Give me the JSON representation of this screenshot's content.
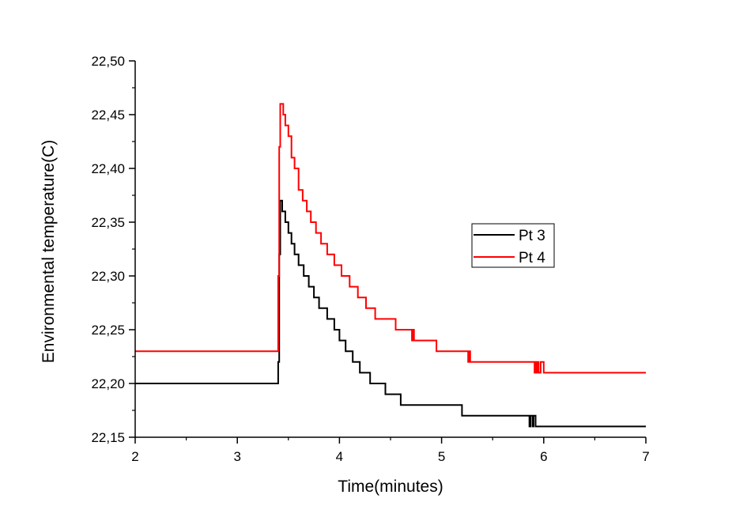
{
  "chart_data": {
    "type": "line",
    "title": "",
    "xlabel": "Time(minutes)",
    "ylabel": "Environmental temperature(C)",
    "xlim": [
      2,
      7
    ],
    "ylim": [
      22.15,
      22.5
    ],
    "x_ticks": [
      2,
      3,
      4,
      5,
      6,
      7
    ],
    "x_tick_labels": [
      "2",
      "3",
      "4",
      "5",
      "6",
      "7"
    ],
    "y_ticks": [
      22.15,
      22.2,
      22.25,
      22.3,
      22.35,
      22.4,
      22.45,
      22.5
    ],
    "y_tick_labels": [
      "22,15",
      "22,20",
      "22,25",
      "22,30",
      "22,35",
      "22,40",
      "22,45",
      "22,50"
    ],
    "grid": false,
    "legend_position": "right",
    "series": [
      {
        "name": "Pt 3",
        "color": "#000000",
        "x": [
          2.0,
          3.39,
          3.4,
          3.41,
          3.42,
          3.44,
          3.47,
          3.5,
          3.53,
          3.56,
          3.6,
          3.65,
          3.7,
          3.75,
          3.8,
          3.88,
          3.95,
          4.0,
          4.06,
          4.13,
          4.2,
          4.3,
          4.45,
          4.6,
          4.85,
          5.2,
          5.5,
          5.85,
          5.86,
          5.87,
          5.89,
          5.9,
          5.92,
          5.95,
          7.0
        ],
        "y": [
          22.2,
          22.2,
          22.22,
          22.32,
          22.37,
          22.36,
          22.35,
          22.34,
          22.33,
          22.32,
          22.31,
          22.3,
          22.29,
          22.28,
          22.27,
          22.26,
          22.25,
          22.24,
          22.23,
          22.22,
          22.21,
          22.2,
          22.19,
          22.18,
          22.18,
          22.17,
          22.17,
          22.17,
          22.16,
          22.17,
          22.16,
          22.17,
          22.16,
          22.16,
          22.16
        ]
      },
      {
        "name": "Pt 4",
        "color": "#ff0000",
        "x": [
          2.0,
          3.39,
          3.4,
          3.41,
          3.42,
          3.43,
          3.45,
          3.47,
          3.5,
          3.53,
          3.56,
          3.6,
          3.64,
          3.68,
          3.72,
          3.77,
          3.82,
          3.88,
          3.95,
          4.02,
          4.1,
          4.18,
          4.26,
          4.35,
          4.45,
          4.55,
          4.7,
          4.71,
          4.72,
          4.73,
          4.74,
          4.95,
          5.25,
          5.26,
          5.27,
          5.28,
          5.3,
          5.5,
          5.9,
          5.91,
          5.92,
          5.93,
          5.94,
          5.95,
          5.97,
          5.99,
          6.0,
          6.05,
          7.0
        ],
        "y": [
          22.23,
          22.23,
          22.3,
          22.42,
          22.46,
          22.46,
          22.45,
          22.44,
          22.43,
          22.41,
          22.4,
          22.38,
          22.37,
          22.36,
          22.35,
          22.34,
          22.33,
          22.32,
          22.31,
          22.3,
          22.29,
          22.28,
          22.27,
          22.26,
          22.26,
          22.25,
          22.25,
          22.24,
          22.25,
          22.24,
          22.24,
          22.23,
          22.23,
          22.22,
          22.23,
          22.22,
          22.22,
          22.22,
          22.22,
          22.21,
          22.22,
          22.21,
          22.22,
          22.21,
          22.22,
          22.22,
          22.21,
          22.21,
          22.21
        ]
      }
    ]
  }
}
